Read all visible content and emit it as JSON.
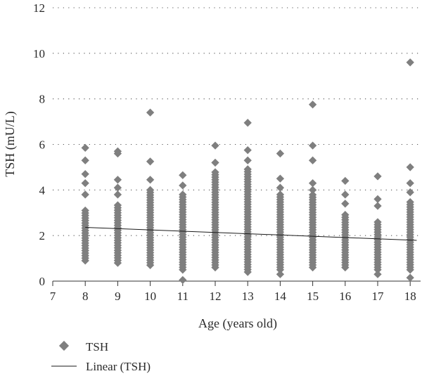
{
  "chart_data": {
    "type": "scatter",
    "xlabel": "Age (years old)",
    "ylabel": "TSH (mU/L)",
    "xlim": [
      7,
      18.2
    ],
    "ylim": [
      0,
      12
    ],
    "x_ticks": [
      7,
      8,
      9,
      10,
      11,
      12,
      13,
      14,
      15,
      16,
      17,
      18
    ],
    "y_ticks": [
      0,
      2,
      4,
      6,
      8,
      10,
      12
    ],
    "grid": "horizontal-dotted",
    "legend_position": "bottom-left",
    "marker_color": "#7f7f7f",
    "line_color": "#1a1a1a",
    "series": [
      {
        "name": "TSH",
        "kind": "points",
        "ages": [
          8,
          9,
          10,
          11,
          12,
          13,
          14,
          15,
          16,
          17,
          18
        ],
        "column_ranges": [
          [
            0.9,
            3.2
          ],
          [
            0.8,
            3.4
          ],
          [
            0.7,
            3.9
          ],
          [
            0.5,
            3.8
          ],
          [
            0.6,
            4.8
          ],
          [
            0.4,
            5.0
          ],
          [
            0.5,
            3.8
          ],
          [
            0.6,
            3.8
          ],
          [
            0.6,
            3.0
          ],
          [
            0.5,
            2.6
          ],
          [
            0.5,
            3.5
          ]
        ],
        "outliers": [
          [
            8,
            5.85
          ],
          [
            8,
            5.3
          ],
          [
            8,
            4.7
          ],
          [
            8,
            4.3
          ],
          [
            8,
            3.8
          ],
          [
            9,
            5.7
          ],
          [
            9,
            5.6
          ],
          [
            9,
            4.45
          ],
          [
            9,
            4.1
          ],
          [
            9,
            3.8
          ],
          [
            10,
            7.4
          ],
          [
            10,
            5.25
          ],
          [
            10,
            4.45
          ],
          [
            10,
            4.0
          ],
          [
            11,
            4.65
          ],
          [
            11,
            4.2
          ],
          [
            11,
            0.05
          ],
          [
            12,
            5.95
          ],
          [
            12,
            5.2
          ],
          [
            13,
            6.95
          ],
          [
            13,
            5.75
          ],
          [
            13,
            5.3
          ],
          [
            14,
            5.6
          ],
          [
            14,
            4.5
          ],
          [
            14,
            4.1
          ],
          [
            14,
            0.3
          ],
          [
            15,
            7.75
          ],
          [
            15,
            5.95
          ],
          [
            15,
            5.3
          ],
          [
            15,
            4.3
          ],
          [
            15,
            4.0
          ],
          [
            16,
            4.4
          ],
          [
            16,
            3.8
          ],
          [
            16,
            3.4
          ],
          [
            17,
            4.6
          ],
          [
            17,
            3.6
          ],
          [
            17,
            3.3
          ],
          [
            17,
            0.3
          ],
          [
            18,
            9.6
          ],
          [
            18,
            5.0
          ],
          [
            18,
            4.3
          ],
          [
            18,
            3.9
          ],
          [
            18,
            0.15
          ]
        ]
      },
      {
        "name": "Linear (TSH)",
        "kind": "trendline",
        "x": [
          8,
          18.2
        ],
        "y": [
          2.36,
          1.79
        ]
      }
    ]
  }
}
